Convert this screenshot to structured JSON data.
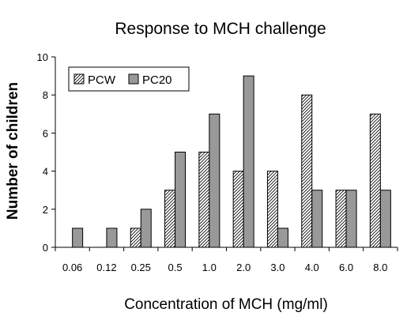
{
  "chart_data": {
    "type": "bar",
    "title": "Response to MCH challenge",
    "xlabel": "Concentration of MCH (mg/ml)",
    "ylabel": "Number of children",
    "categories": [
      "0.06",
      "0.12",
      "0.25",
      "0.5",
      "1.0",
      "2.0",
      "3.0",
      "4.0",
      "6.0",
      "8.0"
    ],
    "series": [
      {
        "name": "PCW",
        "values": [
          0,
          0,
          1,
          3,
          5,
          4,
          4,
          8,
          3,
          7
        ],
        "pattern": "diagonal-hatch",
        "color": "#ffffff"
      },
      {
        "name": "PC20",
        "values": [
          1,
          1,
          2,
          5,
          7,
          9,
          1,
          3,
          3,
          3
        ],
        "pattern": "solid",
        "color": "#999999"
      }
    ],
    "ylim": [
      0,
      10
    ],
    "yticks": [
      0,
      2,
      4,
      6,
      8,
      10
    ],
    "grid": false,
    "legend_position": "top-left"
  }
}
